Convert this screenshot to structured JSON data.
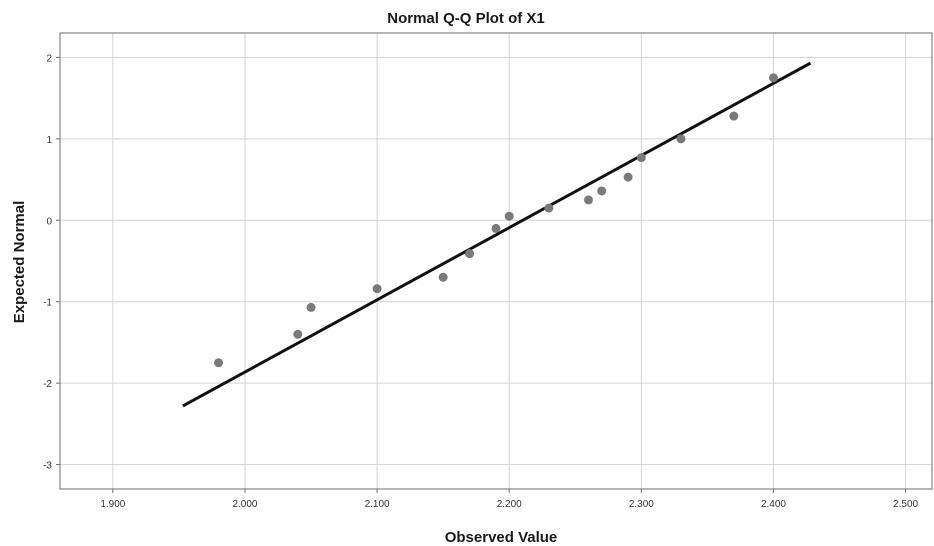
{
  "chart_data": {
    "type": "scatter",
    "title": "Normal Q-Q Plot of X1",
    "xlabel": "Observed Value",
    "ylabel": "Expected Normal",
    "xlim": [
      1.86,
      2.52
    ],
    "ylim": [
      -3.3,
      2.3
    ],
    "xticks": [
      1.9,
      2.0,
      2.1,
      2.2,
      2.3,
      2.4,
      2.5
    ],
    "xtick_labels": [
      "1.900",
      "2.000",
      "2.100",
      "2.200",
      "2.300",
      "2.400",
      "2.500"
    ],
    "yticks": [
      -3,
      -2,
      -1,
      0,
      1,
      2
    ],
    "ytick_labels": [
      "-3",
      "-2",
      "-1",
      "0",
      "1",
      "2"
    ],
    "grid": true,
    "points": [
      {
        "x": 1.98,
        "y": -1.75
      },
      {
        "x": 2.04,
        "y": -1.4
      },
      {
        "x": 2.05,
        "y": -1.07
      },
      {
        "x": 2.1,
        "y": -0.84
      },
      {
        "x": 2.15,
        "y": -0.7
      },
      {
        "x": 2.17,
        "y": -0.41
      },
      {
        "x": 2.19,
        "y": -0.1
      },
      {
        "x": 2.2,
        "y": 0.05
      },
      {
        "x": 2.23,
        "y": 0.15
      },
      {
        "x": 2.26,
        "y": 0.25
      },
      {
        "x": 2.27,
        "y": 0.36
      },
      {
        "x": 2.29,
        "y": 0.53
      },
      {
        "x": 2.3,
        "y": 0.77
      },
      {
        "x": 2.33,
        "y": 1.0
      },
      {
        "x": 2.37,
        "y": 1.28
      },
      {
        "x": 2.4,
        "y": 1.75
      }
    ],
    "reference_line": {
      "x": [
        1.953,
        2.428
      ],
      "y": [
        -2.28,
        1.93
      ]
    },
    "colors": {
      "points": "#7a7a7a",
      "line": "#111111",
      "grid": "#d3d3d3"
    }
  }
}
